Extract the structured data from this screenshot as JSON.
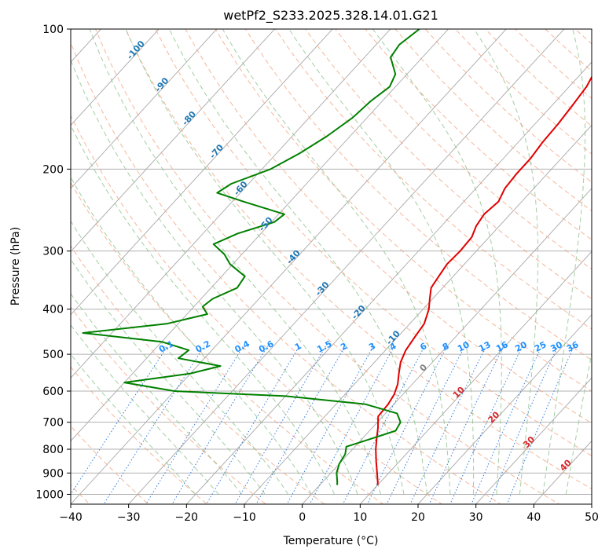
{
  "chart_data": {
    "type": "line",
    "title": "wetPf2_S233.2025.328.14.01.G21",
    "xlabel": "Temperature (°C)",
    "ylabel": "Pressure (hPa)",
    "xlim": [
      -40,
      50
    ],
    "ylim": [
      1050,
      100
    ],
    "yscale": "log",
    "grid": true,
    "x_ticks": [
      -40,
      -30,
      -20,
      -10,
      0,
      10,
      20,
      30,
      40,
      50
    ],
    "x_tick_labels": [
      "−40",
      "−30",
      "−20",
      "−10",
      "0",
      "10",
      "20",
      "30",
      "40",
      "50"
    ],
    "y_ticks": [
      100,
      200,
      300,
      400,
      500,
      600,
      700,
      800,
      900,
      1000
    ],
    "y_tick_labels": [
      "100",
      "200",
      "300",
      "400",
      "500",
      "600",
      "700",
      "800",
      "900",
      "1000"
    ],
    "dry_adiabat_labels": [
      {
        "text": "-100",
        "t": -100,
        "p": 112
      },
      {
        "text": "-90",
        "t": -90,
        "p": 133
      },
      {
        "text": "-80",
        "t": -80,
        "p": 157
      },
      {
        "text": "-70",
        "t": -70,
        "p": 185
      },
      {
        "text": "-60",
        "t": -60,
        "p": 222
      },
      {
        "text": "-50",
        "t": -50,
        "p": 265
      },
      {
        "text": "-40",
        "t": -40,
        "p": 312
      },
      {
        "text": "-30",
        "t": -30,
        "p": 365
      },
      {
        "text": "-20",
        "t": -20,
        "p": 410
      },
      {
        "text": "-10",
        "t": -10,
        "p": 465
      }
    ],
    "moist_adiabat_labels": [
      {
        "text": "0",
        "t": 0,
        "p": 540
      },
      {
        "text": "10",
        "t": 10,
        "p": 610
      },
      {
        "text": "20",
        "t": 20,
        "p": 690
      },
      {
        "text": "30",
        "t": 30,
        "p": 780
      },
      {
        "text": "40",
        "t": 40,
        "p": 875
      }
    ],
    "mixing_ratio_labels": [
      "0.1",
      "0.2",
      "0.4",
      "0.6",
      "1",
      "1.5",
      "2",
      "3",
      "4",
      "6",
      "8",
      "10",
      "13",
      "16",
      "20",
      "25",
      "30",
      "36"
    ],
    "series": [
      {
        "role": "temperature",
        "color": "#e00000",
        "points": [
          [
            100,
            -18.5
          ],
          [
            110,
            -18.0
          ],
          [
            115,
            -18.2
          ],
          [
            120,
            -18.5
          ],
          [
            125,
            -17.8
          ],
          [
            133,
            -17.0
          ],
          [
            145,
            -16.5
          ],
          [
            160,
            -16.0
          ],
          [
            175,
            -15.8
          ],
          [
            190,
            -15.3
          ],
          [
            205,
            -15.3
          ],
          [
            220,
            -15.0
          ],
          [
            235,
            -14.0
          ],
          [
            250,
            -14.5
          ],
          [
            265,
            -14.0
          ],
          [
            280,
            -13.0
          ],
          [
            300,
            -12.8
          ],
          [
            320,
            -13.0
          ],
          [
            340,
            -12.5
          ],
          [
            360,
            -12.0
          ],
          [
            380,
            -10.5
          ],
          [
            400,
            -9.0
          ],
          [
            430,
            -7.5
          ],
          [
            460,
            -7.0
          ],
          [
            490,
            -6.5
          ],
          [
            520,
            -5.5
          ],
          [
            550,
            -4.0
          ],
          [
            580,
            -2.5
          ],
          [
            610,
            -1.5
          ],
          [
            640,
            -1.0
          ],
          [
            680,
            -0.8
          ],
          [
            720,
            1.0
          ],
          [
            760,
            2.5
          ],
          [
            800,
            4.0
          ],
          [
            850,
            6.0
          ],
          [
            900,
            8.0
          ],
          [
            940,
            9.5
          ],
          [
            955,
            10.0
          ]
        ]
      },
      {
        "role": "dewpoint",
        "color": "#008000",
        "points": [
          [
            100,
            -55.0
          ],
          [
            108,
            -56.0
          ],
          [
            115,
            -55.5
          ],
          [
            125,
            -52.0
          ],
          [
            133,
            -51.0
          ],
          [
            143,
            -52.0
          ],
          [
            155,
            -52.5
          ],
          [
            170,
            -54.0
          ],
          [
            185,
            -56.0
          ],
          [
            200,
            -58.5
          ],
          [
            215,
            -63.0
          ],
          [
            225,
            -64.0
          ],
          [
            235,
            -58.0
          ],
          [
            250,
            -49.0
          ],
          [
            260,
            -49.5
          ],
          [
            275,
            -54.0
          ],
          [
            290,
            -56.5
          ],
          [
            305,
            -53.0
          ],
          [
            320,
            -50.5
          ],
          [
            340,
            -46.0
          ],
          [
            360,
            -45.5
          ],
          [
            380,
            -48.0
          ],
          [
            395,
            -48.5
          ],
          [
            410,
            -46.5
          ],
          [
            430,
            -52.0
          ],
          [
            450,
            -65.0
          ],
          [
            470,
            -50.0
          ],
          [
            490,
            -44.0
          ],
          [
            510,
            -44.5
          ],
          [
            530,
            -36.0
          ],
          [
            550,
            -40.0
          ],
          [
            575,
            -50.0
          ],
          [
            600,
            -40.0
          ],
          [
            615,
            -20.0
          ],
          [
            640,
            -5.0
          ],
          [
            670,
            2.0
          ],
          [
            700,
            4.0
          ],
          [
            730,
            4.5
          ],
          [
            760,
            1.5
          ],
          [
            790,
            -1.5
          ],
          [
            820,
            -0.5
          ],
          [
            860,
            0.0
          ],
          [
            900,
            1.0
          ],
          [
            940,
            2.5
          ],
          [
            955,
            3.0
          ]
        ]
      }
    ]
  }
}
